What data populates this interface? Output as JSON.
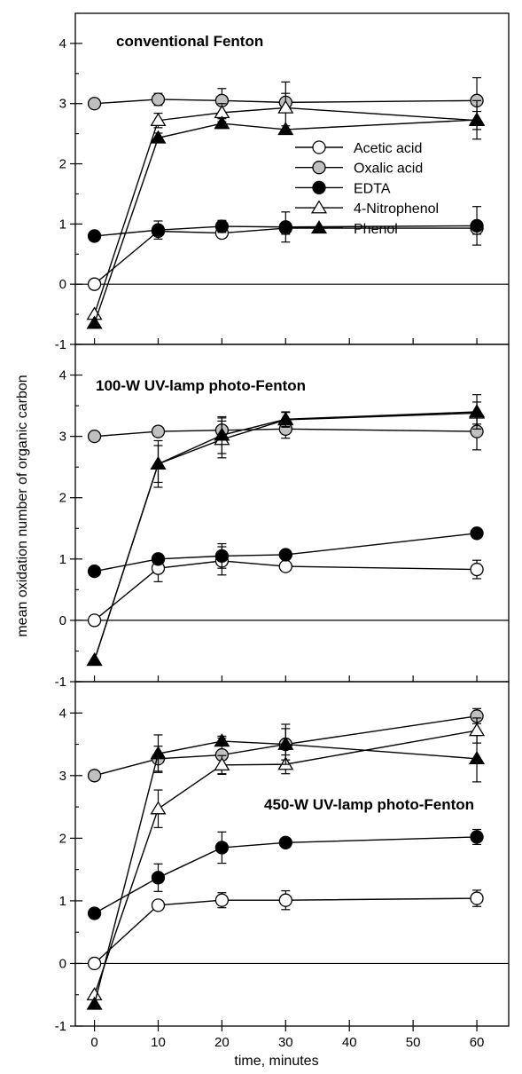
{
  "chart_data": {
    "type": "line",
    "xlabel": "time, minutes",
    "ylabel": "mean oxidation number of organic carbon",
    "x": [
      0,
      10,
      20,
      30,
      60
    ],
    "xlim": [
      -3,
      65
    ],
    "xticks": [
      "0",
      "10",
      "20",
      "30",
      "40",
      "50",
      "60"
    ],
    "ylim": [
      -1,
      4.5
    ],
    "yticks": [
      "-1",
      "0",
      "1",
      "2",
      "3",
      "4"
    ],
    "grid": false,
    "legend_position": "top-right of top panel",
    "legend": [
      {
        "name": "Acetic acid",
        "marker": "circle-open"
      },
      {
        "name": "Oxalic acid",
        "marker": "circle-gray"
      },
      {
        "name": "EDTA",
        "marker": "circle-filled"
      },
      {
        "name": "4-Nitrophenol",
        "marker": "triangle-open"
      },
      {
        "name": "Phenol",
        "marker": "triangle-filled"
      }
    ],
    "panels": [
      {
        "title": "conventional Fenton",
        "series": [
          {
            "name": "Acetic acid",
            "values": [
              0,
              0.88,
              0.85,
              0.93,
              0.93
            ],
            "err": [
              0,
              0.07,
              0.07,
              0.1,
              0.1
            ]
          },
          {
            "name": "Oxalic acid",
            "values": [
              3.0,
              3.07,
              3.05,
              3.02,
              3.05
            ],
            "err": [
              0,
              0.1,
              0.2,
              0.15,
              0.38
            ]
          },
          {
            "name": "EDTA",
            "values": [
              0.8,
              0.9,
              0.96,
              0.95,
              0.97
            ],
            "err": [
              0,
              0.15,
              0.1,
              0.25,
              0.32
            ]
          },
          {
            "name": "4-Nitrophenol",
            "values": [
              -0.5,
              2.72,
              2.85,
              2.93,
              2.72
            ],
            "err": [
              0,
              0.12,
              0.15,
              0.43,
              0.15
            ]
          },
          {
            "name": "Phenol",
            "values": [
              -0.65,
              2.43,
              2.67,
              2.57,
              2.73
            ],
            "err": [
              0,
              0.08,
              0.08,
              0.06,
              0.32
            ]
          }
        ]
      },
      {
        "title": "100-W UV-lamp photo-Fenton",
        "series": [
          {
            "name": "Acetic acid",
            "values": [
              0,
              0.85,
              0.97,
              0.88,
              0.83
            ],
            "err": [
              0,
              0.22,
              0.23,
              0.07,
              0.15
            ]
          },
          {
            "name": "Oxalic acid",
            "values": [
              3.0,
              3.08,
              3.1,
              3.12,
              3.08
            ],
            "err": [
              0,
              0.08,
              0.2,
              0.15,
              0.3
            ]
          },
          {
            "name": "EDTA",
            "values": [
              0.8,
              1.0,
              1.05,
              1.07,
              1.42
            ],
            "err": [
              0,
              0.08,
              0.2,
              0.05,
              0.05
            ]
          },
          {
            "name": "4-Nitrophenol",
            "values": [
              -0.65,
              2.55,
              2.95,
              3.27,
              3.38
            ],
            "err": [
              0,
              0.38,
              0.3,
              0.12,
              0.18
            ]
          },
          {
            "name": "Phenol",
            "values": [
              -0.65,
              2.55,
              3.02,
              3.28,
              3.4
            ],
            "err": [
              0,
              0.3,
              0.3,
              0.12,
              0.28
            ]
          }
        ]
      },
      {
        "title": "450-W UV-lamp photo-Fenton",
        "series": [
          {
            "name": "Acetic acid",
            "values": [
              0,
              0.93,
              1.01,
              1.01,
              1.04
            ],
            "err": [
              0,
              0.05,
              0.12,
              0.15,
              0.13
            ]
          },
          {
            "name": "Oxalic acid",
            "values": [
              3.0,
              3.27,
              3.33,
              3.5,
              3.95
            ],
            "err": [
              0,
              0.2,
              0.3,
              0.25,
              0.12
            ]
          },
          {
            "name": "EDTA",
            "values": [
              0.8,
              1.37,
              1.85,
              1.93,
              2.02
            ],
            "err": [
              0,
              0.22,
              0.25,
              0.05,
              0.12
            ]
          },
          {
            "name": "4-Nitrophenol",
            "values": [
              -0.5,
              2.47,
              3.17,
              3.18,
              3.72
            ],
            "err": [
              0,
              0.3,
              0.15,
              0.15,
              0.2
            ]
          },
          {
            "name": "Phenol",
            "values": [
              -0.65,
              3.35,
              3.55,
              3.5,
              3.27
            ],
            "err": [
              0,
              0.3,
              0.05,
              0.32,
              0.37
            ]
          }
        ]
      }
    ]
  }
}
